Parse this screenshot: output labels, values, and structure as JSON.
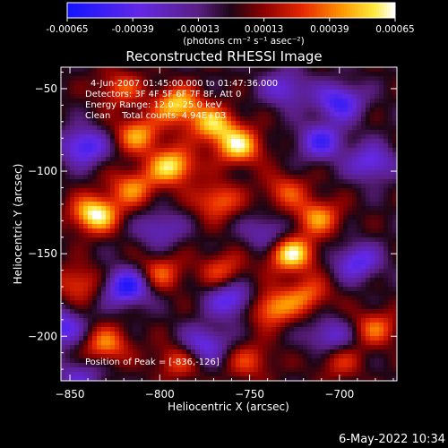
{
  "chart_data": {
    "type": "heatmap",
    "title": "Reconstructed RHESSI Image",
    "xlabel": "Heliocentric X (arcsec)",
    "ylabel": "Heliocentric Y (arcsec)",
    "xlim": [
      -855,
      -668
    ],
    "ylim": [
      -227,
      -37
    ],
    "xticks": [
      -850,
      -800,
      -750,
      -700
    ],
    "yticks": [
      -50,
      -100,
      -150,
      -200
    ],
    "colorbar": {
      "ticks": [
        -0.00065,
        -0.00039,
        -0.00013,
        0.00013,
        0.00039,
        0.00065
      ],
      "tick_labels": [
        "-0.00065",
        "-0.00039",
        "-0.00013",
        "0.00013",
        "0.00039",
        "0.00065"
      ],
      "unit_label": "(photons cm⁻² s⁻¹ asec⁻²)"
    },
    "annotations": [
      "4-Jun-2007 01:45:00.000 to 01:47:36.000",
      "Detectors: 3F 4F 5F 6F 7F 8F, Att 0",
      "Energy Range: 12.0 - 25.0 keV",
      "Clean    Total counts: 4.94E+03"
    ],
    "peak_label": "Position of Peak = [-836,-126]",
    "peak": [
      -836,
      -126
    ],
    "hotspots": [
      {
        "x": -836,
        "y": -126,
        "value": 0.00065
      },
      {
        "x": -790,
        "y": -60,
        "value": 0.00055
      },
      {
        "x": -793,
        "y": -97,
        "value": 0.00058
      },
      {
        "x": -770,
        "y": -72,
        "value": 0.0005
      },
      {
        "x": -756,
        "y": -85,
        "value": 0.00055
      },
      {
        "x": -812,
        "y": -78,
        "value": 0.00045
      },
      {
        "x": -815,
        "y": -110,
        "value": 0.0004
      },
      {
        "x": -768,
        "y": -118,
        "value": 0.00038
      },
      {
        "x": -730,
        "y": -112,
        "value": 0.0003
      },
      {
        "x": -727,
        "y": -150,
        "value": 0.00062
      },
      {
        "x": -712,
        "y": -128,
        "value": 0.00042
      },
      {
        "x": -738,
        "y": -183,
        "value": 0.00045
      },
      {
        "x": -718,
        "y": -175,
        "value": 0.00035
      },
      {
        "x": -800,
        "y": -162,
        "value": 0.00035
      },
      {
        "x": -765,
        "y": -160,
        "value": 0.0003
      },
      {
        "x": -845,
        "y": -168,
        "value": 0.00032
      },
      {
        "x": -830,
        "y": -205,
        "value": 0.0004
      },
      {
        "x": -790,
        "y": -215,
        "value": 0.0003
      },
      {
        "x": -822,
        "y": -50,
        "value": 0.00032
      },
      {
        "x": -680,
        "y": -195,
        "value": 0.00035
      },
      {
        "x": -750,
        "y": -215,
        "value": 0.00028
      },
      {
        "x": -700,
        "y": -215,
        "value": 0.00025
      }
    ],
    "coldspots": [
      {
        "x": -818,
        "y": -170,
        "value": -0.0006
      },
      {
        "x": -760,
        "y": -178,
        "value": -0.00045
      },
      {
        "x": -700,
        "y": -58,
        "value": -0.0005
      },
      {
        "x": -682,
        "y": -95,
        "value": -0.0004
      },
      {
        "x": -710,
        "y": -82,
        "value": -0.00045
      },
      {
        "x": -842,
        "y": -85,
        "value": -0.0005
      },
      {
        "x": -855,
        "y": -195,
        "value": -0.00045
      },
      {
        "x": -775,
        "y": -205,
        "value": -0.0004
      },
      {
        "x": -740,
        "y": -138,
        "value": -0.0003
      },
      {
        "x": -690,
        "y": -155,
        "value": -0.00042
      },
      {
        "x": -800,
        "y": -135,
        "value": -0.0003
      },
      {
        "x": -730,
        "y": -50,
        "value": -0.00035
      },
      {
        "x": -845,
        "y": -225,
        "value": -0.0003
      },
      {
        "x": -705,
        "y": -200,
        "value": -0.00035
      }
    ]
  },
  "footer": {
    "timestamp": "6-May-2022 10:34"
  }
}
